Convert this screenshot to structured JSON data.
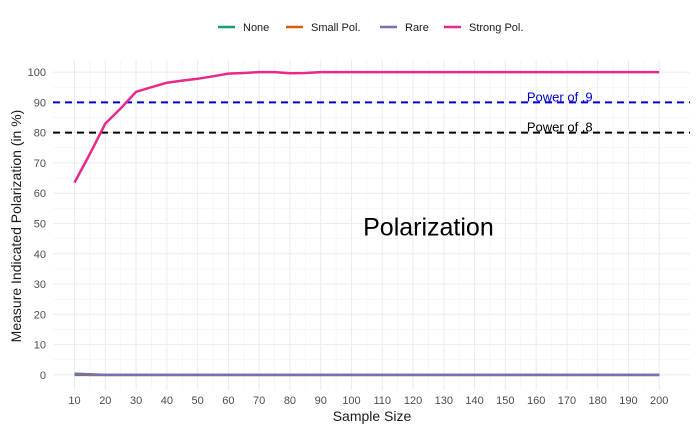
{
  "chart_data": {
    "type": "line",
    "title": "",
    "xlabel": "Sample Size",
    "ylabel": "Measure Indicated Polarization (in %)",
    "xlim": [
      3,
      210
    ],
    "ylim": [
      -5,
      104
    ],
    "x_ticks": [
      10,
      20,
      30,
      40,
      50,
      60,
      70,
      80,
      90,
      100,
      110,
      120,
      130,
      140,
      150,
      160,
      170,
      180,
      190,
      200
    ],
    "y_ticks": [
      0,
      10,
      20,
      30,
      40,
      50,
      60,
      70,
      80,
      90,
      100
    ],
    "grid": true,
    "legend": {
      "position": "top"
    },
    "x": [
      10,
      15,
      20,
      25,
      30,
      35,
      40,
      45,
      50,
      55,
      60,
      65,
      70,
      75,
      80,
      85,
      90,
      95,
      100,
      105,
      110,
      115,
      120,
      125,
      130,
      135,
      140,
      145,
      150,
      155,
      160,
      165,
      170,
      175,
      180,
      185,
      190,
      195,
      200
    ],
    "series": [
      {
        "name": "None",
        "color": "#1b9e77",
        "values": [
          0,
          0,
          0,
          0,
          0,
          0,
          0,
          0,
          0,
          0,
          0,
          0,
          0,
          0,
          0,
          0,
          0,
          0,
          0,
          0,
          0,
          0,
          0,
          0,
          0,
          0,
          0,
          0,
          0,
          0,
          0,
          0,
          0,
          0,
          0,
          0,
          0,
          0,
          0
        ]
      },
      {
        "name": "Small Pol.",
        "color": "#d95f02",
        "values": [
          0.3,
          0,
          0,
          0,
          0,
          0,
          0,
          0,
          0,
          0,
          0,
          0,
          0,
          0,
          0,
          0,
          0,
          0,
          0,
          0,
          0,
          0,
          0,
          0,
          0,
          0,
          0,
          0,
          0,
          0,
          0,
          0,
          0,
          0,
          0,
          0,
          0,
          0,
          0
        ]
      },
      {
        "name": "Rare",
        "color": "#7570b3",
        "values": [
          0.4,
          0.2,
          0,
          0,
          0,
          0,
          0,
          0,
          0,
          0,
          0,
          0,
          0,
          0,
          0,
          0,
          0,
          0,
          0,
          0,
          0,
          0,
          0,
          0,
          0,
          0,
          0,
          0,
          0,
          0,
          0,
          0,
          0,
          0,
          0,
          0,
          0,
          0,
          0
        ]
      },
      {
        "name": "Strong Pol.",
        "color": "#e7298a",
        "values": [
          63.5,
          73,
          83,
          88,
          93.5,
          95,
          96.5,
          97.2,
          97.8,
          98.6,
          99.5,
          99.7,
          100,
          100,
          99.6,
          99.7,
          100,
          100,
          100,
          100,
          100,
          100,
          100,
          100,
          100,
          100,
          100,
          100,
          100,
          100,
          100,
          100,
          100,
          100,
          100,
          100,
          100,
          100,
          100
        ]
      }
    ],
    "reference_lines": [
      {
        "label": "Power of .9",
        "y": 90,
        "color": "#0000cd"
      },
      {
        "label": "Power of .8",
        "y": 80,
        "color": "#000000"
      }
    ],
    "annotation": {
      "text": "Polarization",
      "x": 125,
      "y": 49
    }
  }
}
